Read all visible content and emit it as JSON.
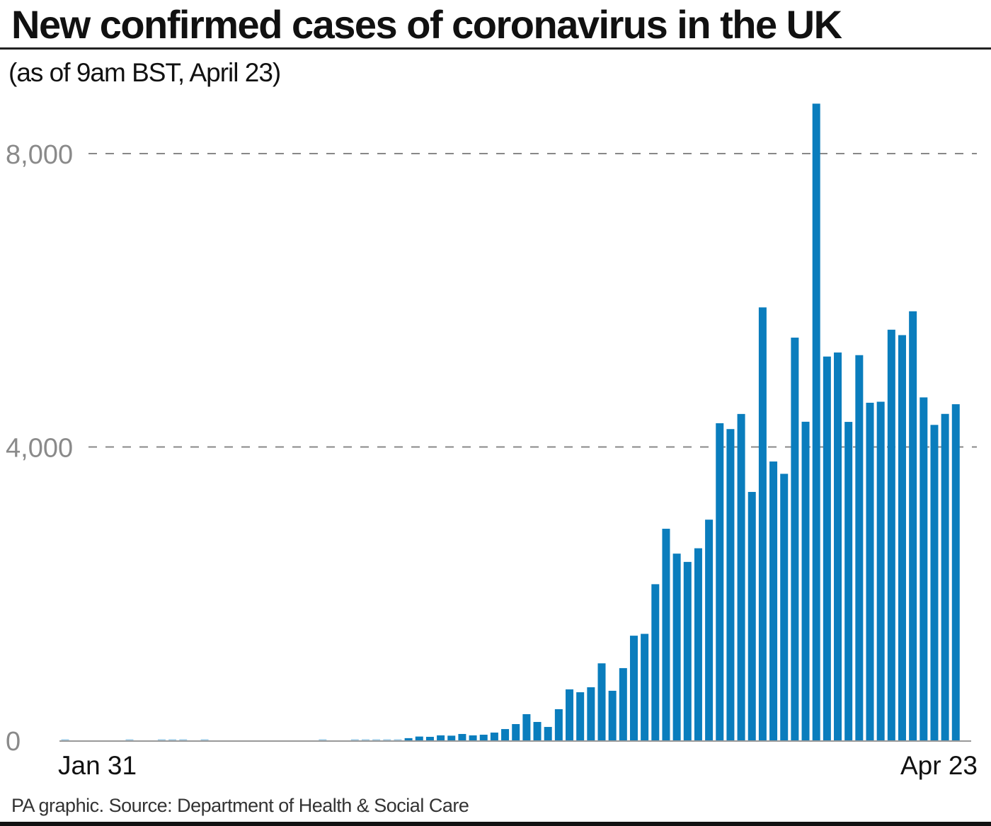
{
  "chart_data": {
    "type": "bar",
    "title": "New confirmed cases of coronavirus in the UK",
    "subtitle": "(as of 9am BST, April 23)",
    "xlabel": "",
    "ylabel": "",
    "x_tick_labels": [
      "Jan 31",
      "Apr 23"
    ],
    "y_ticks": [
      0,
      4000,
      8000
    ],
    "y_tick_labels": [
      "0",
      "4,000",
      "8,000"
    ],
    "ylim": [
      0,
      9000
    ],
    "grid": "dashed horizontal at y ticks",
    "bar_color": "#0a7dbd",
    "first_date": "Jan 31",
    "last_date": "Apr 23",
    "values": [
      2,
      0,
      0,
      0,
      0,
      0,
      1,
      0,
      0,
      3,
      4,
      1,
      0,
      1,
      0,
      0,
      0,
      0,
      0,
      0,
      0,
      0,
      0,
      0,
      4,
      0,
      0,
      3,
      4,
      5,
      12,
      13,
      30,
      52,
      48,
      68,
      64,
      87,
      68,
      77,
      106,
      154,
      222,
      357,
      251,
      183,
      425,
      695,
      656,
      724,
      1050,
      676,
      985,
      1427,
      1452,
      2129,
      2885,
      2546,
      2433,
      2619,
      3009,
      4324,
      4244,
      4450,
      3387,
      5903,
      3802,
      3634,
      5491,
      4344,
      8681,
      5233,
      5288,
      4342,
      5252,
      4603,
      4617,
      5599,
      5525,
      5850,
      4676,
      4301,
      4451,
      4583
    ]
  },
  "footer": "PA graphic. Source: Department of Health & Social Care"
}
